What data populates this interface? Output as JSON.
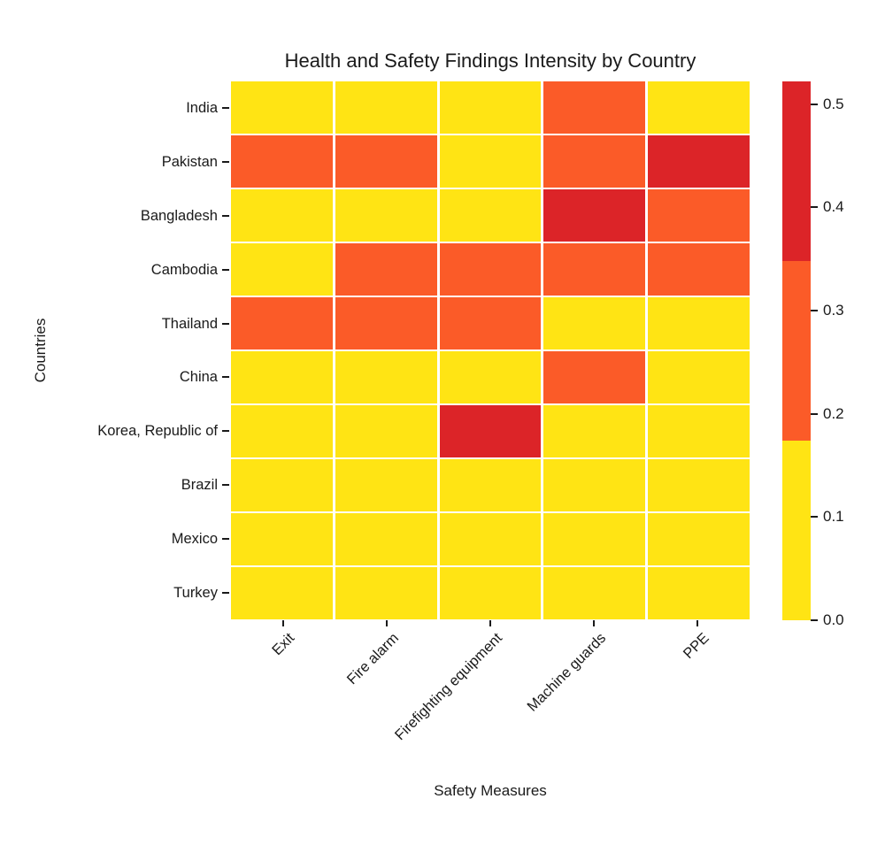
{
  "title": "Health and Safety Findings Intensity by Country",
  "axes": {
    "xlabel": "Safety Measures",
    "ylabel": "Countries"
  },
  "palette": {
    "low": "#FFE414",
    "mid": "#FB5B28",
    "high": "#DC2428"
  },
  "colorbar": {
    "vmin": 0.0,
    "vmax": 0.522,
    "tick_values": [
      0.0,
      0.1,
      0.2,
      0.3,
      0.4,
      0.5
    ],
    "tick_labels": [
      "0.0",
      "0.1",
      "0.2",
      "0.3",
      "0.4",
      "0.5"
    ],
    "segment_order_bottom_to_top": [
      "low",
      "mid",
      "high"
    ],
    "bin_edges": [
      0.0,
      0.174,
      0.348,
      0.522
    ]
  },
  "chart_data": {
    "type": "heatmap",
    "title": "Health and Safety Findings Intensity by Country",
    "xlabel": "Safety Measures",
    "ylabel": "Countries",
    "columns": [
      "Exit",
      "Fire alarm",
      "Firefighting equipment",
      "Machine guards",
      "PPE"
    ],
    "rows": [
      "India",
      "Pakistan",
      "Bangladesh",
      "Cambodia",
      "Thailand",
      "China",
      "Korea, Republic of",
      "Brazil",
      "Mexico",
      "Turkey"
    ],
    "legend_position": "right-colorbar",
    "grid": "white-cell-separators",
    "color_scale": {
      "type": "discrete-3-bin",
      "bins": [
        {
          "level": 0,
          "range": [
            0.0,
            0.174
          ],
          "color": "#FFE414"
        },
        {
          "level": 1,
          "range": [
            0.174,
            0.348
          ],
          "color": "#FB5B28"
        },
        {
          "level": 2,
          "range": [
            0.348,
            0.522
          ],
          "color": "#DC2428"
        }
      ]
    },
    "levels": [
      [
        0,
        0,
        0,
        1,
        0
      ],
      [
        1,
        1,
        0,
        1,
        2
      ],
      [
        0,
        0,
        0,
        2,
        1
      ],
      [
        0,
        1,
        1,
        1,
        1
      ],
      [
        1,
        1,
        1,
        0,
        0
      ],
      [
        0,
        0,
        0,
        1,
        0
      ],
      [
        0,
        0,
        2,
        0,
        0
      ],
      [
        0,
        0,
        0,
        0,
        0
      ],
      [
        0,
        0,
        0,
        0,
        0
      ],
      [
        0,
        0,
        0,
        0,
        0
      ]
    ],
    "estimated_values": [
      [
        0.09,
        0.09,
        0.09,
        0.26,
        0.09
      ],
      [
        0.26,
        0.26,
        0.09,
        0.26,
        0.44
      ],
      [
        0.09,
        0.09,
        0.09,
        0.44,
        0.26
      ],
      [
        0.09,
        0.26,
        0.26,
        0.26,
        0.26
      ],
      [
        0.26,
        0.26,
        0.26,
        0.09,
        0.09
      ],
      [
        0.09,
        0.09,
        0.09,
        0.26,
        0.09
      ],
      [
        0.09,
        0.09,
        0.44,
        0.09,
        0.09
      ],
      [
        0.09,
        0.09,
        0.09,
        0.09,
        0.09
      ],
      [
        0.09,
        0.09,
        0.09,
        0.09,
        0.09
      ],
      [
        0.09,
        0.09,
        0.09,
        0.09,
        0.09
      ]
    ]
  }
}
